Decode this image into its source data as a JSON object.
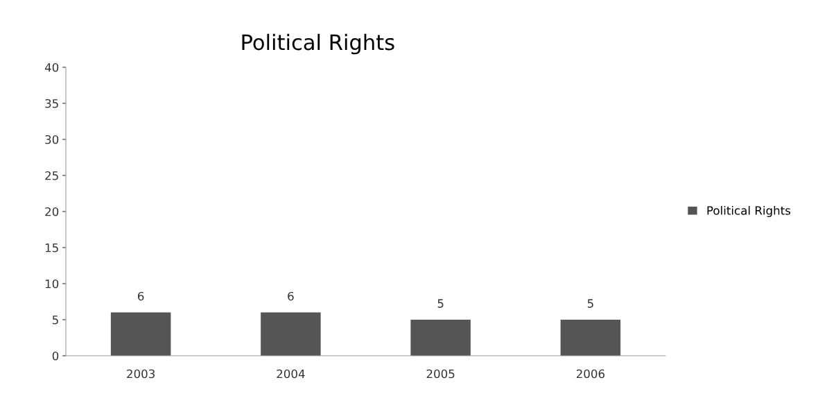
{
  "chart_data": {
    "type": "bar",
    "title": "Political Rights",
    "categories": [
      "2003",
      "2004",
      "2005",
      "2006"
    ],
    "series": [
      {
        "name": "Political Rights",
        "color": "#555555",
        "values": [
          6,
          6,
          5,
          5
        ]
      }
    ],
    "ylim": [
      0,
      40
    ],
    "yticks": [
      0,
      5,
      10,
      15,
      20,
      25,
      30,
      35,
      40
    ],
    "grid": false,
    "legend": "right",
    "data_labels": true
  }
}
